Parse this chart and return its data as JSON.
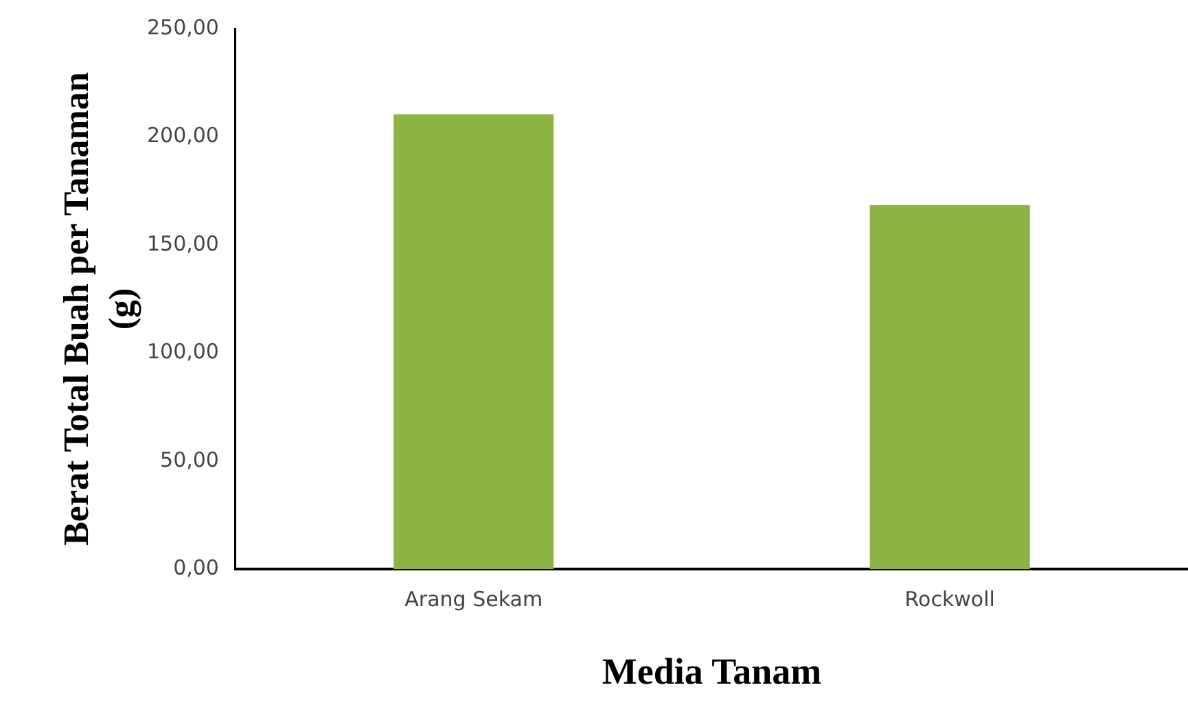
{
  "chart_data": {
    "type": "bar",
    "xlabel": "Media Tanam",
    "ylabel": "Berat Total Buah per Tanaman (g)",
    "categories": [
      "Arang Sekam",
      "Rockwoll"
    ],
    "values": [
      210.5,
      168.5
    ],
    "color": "#8db443",
    "ylim": [
      0,
      250
    ],
    "yticks": [
      {
        "value": 0,
        "label": "0,00"
      },
      {
        "value": 50,
        "label": "50,00"
      },
      {
        "value": 100,
        "label": "100,00"
      },
      {
        "value": 150,
        "label": "150,00"
      },
      {
        "value": 200,
        "label": "200,00"
      },
      {
        "value": 250,
        "label": "250,00"
      }
    ],
    "grid": false,
    "legend": false
  }
}
